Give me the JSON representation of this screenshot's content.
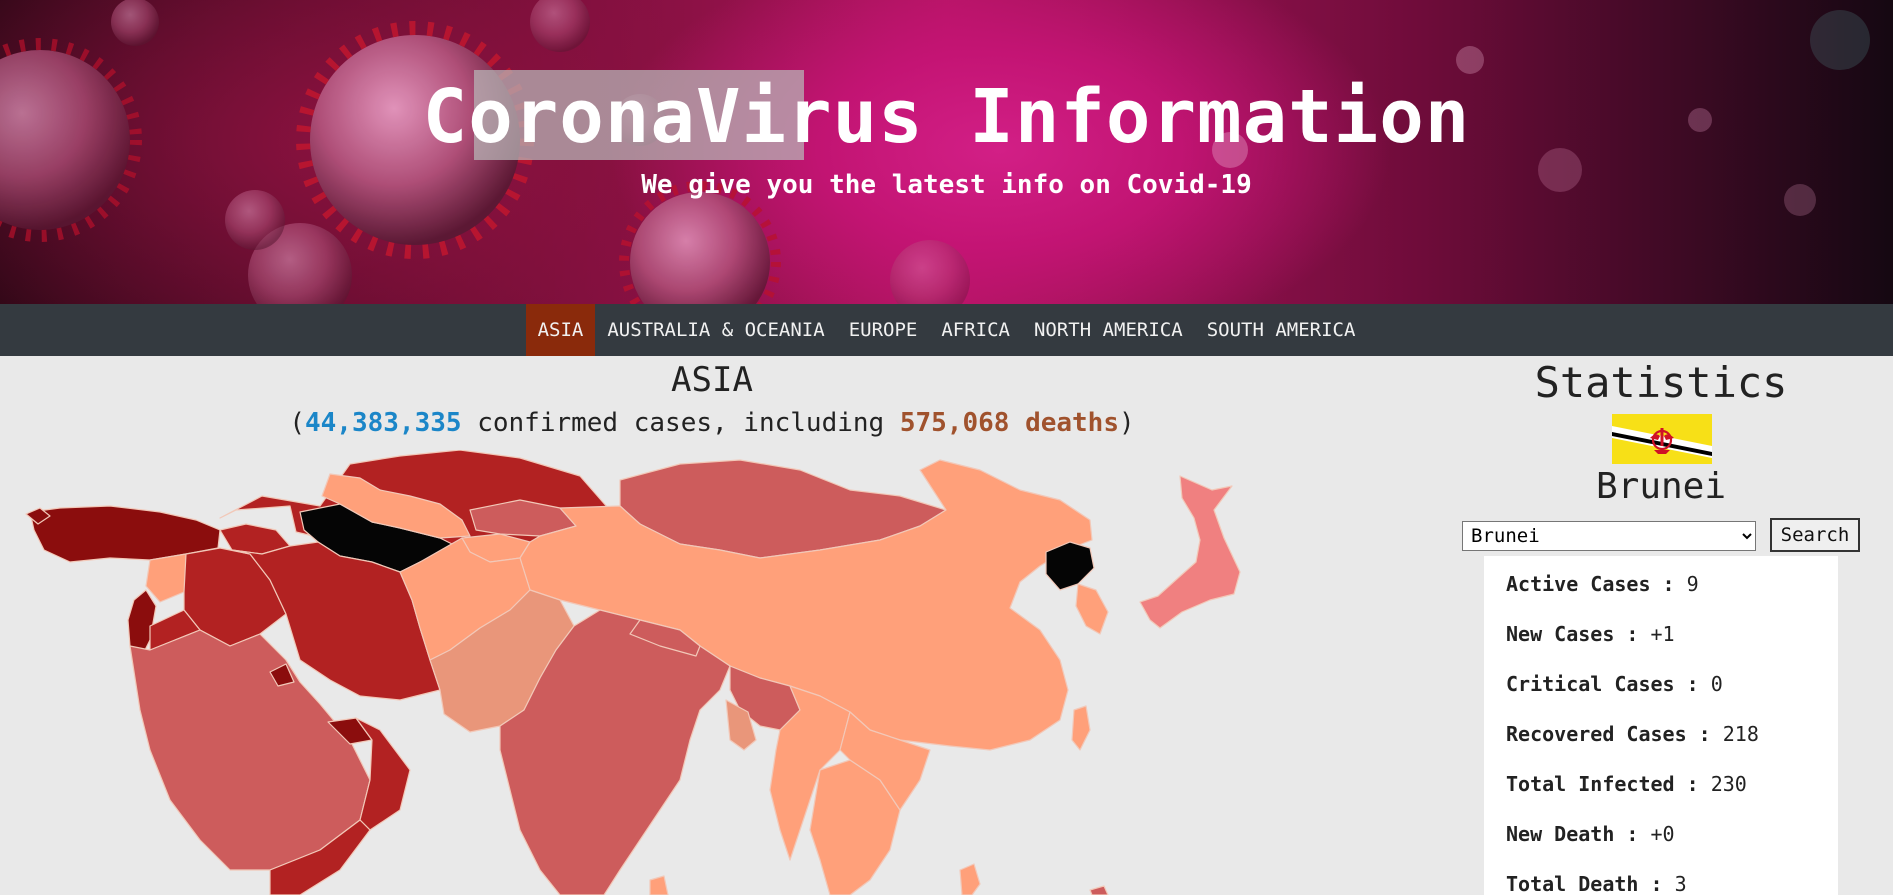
{
  "hero": {
    "title": "CoronaVirus Information",
    "subtitle": "We give you the latest info on Covid-19"
  },
  "nav": {
    "items": [
      {
        "label": "ASIA",
        "active": true
      },
      {
        "label": "AUSTRALIA & OCEANIA"
      },
      {
        "label": "EUROPE"
      },
      {
        "label": "AFRICA"
      },
      {
        "label": "NORTH AMERICA"
      },
      {
        "label": "SOUTH AMERICA"
      }
    ]
  },
  "region": {
    "title": "ASIA",
    "open_paren": "(",
    "confirmed": "44,383,335",
    "confirmed_text": " confirmed cases, including ",
    "deaths": "575,068 deaths",
    "close_paren": ")"
  },
  "stats": {
    "title": "Statistics",
    "country": "Brunei",
    "select_value": "Brunei",
    "search_label": "Search",
    "rows": [
      {
        "label": "Active Cases :",
        "value": "9"
      },
      {
        "label": "New Cases :",
        "value": "+1"
      },
      {
        "label": "Critical Cases :",
        "value": "0"
      },
      {
        "label": "Recovered Cases :",
        "value": "218"
      },
      {
        "label": "Total Infected :",
        "value": "230"
      },
      {
        "label": "New Death :",
        "value": "+0"
      },
      {
        "label": "Total Death :",
        "value": "3"
      }
    ]
  },
  "colors": {
    "nav_bg": "#343a40",
    "nav_active": "#8a2a0b",
    "confirmed": "#1b86c8",
    "deaths": "#a0522d"
  }
}
